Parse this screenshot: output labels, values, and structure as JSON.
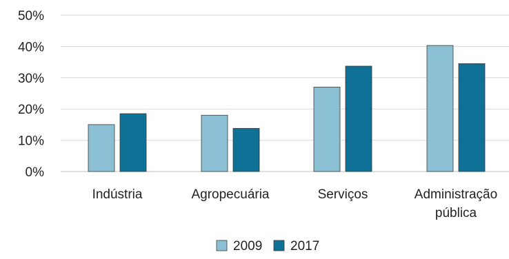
{
  "chart_data": {
    "type": "bar",
    "title": "",
    "xlabel": "",
    "ylabel": "",
    "categories": [
      [
        "Indústria"
      ],
      [
        "Agropecuária"
      ],
      [
        "Serviços"
      ],
      [
        "Administração",
        "pública"
      ]
    ],
    "series": [
      {
        "name": "2009",
        "color": "#8bbfd3",
        "values": [
          15,
          18,
          27,
          40.3
        ]
      },
      {
        "name": "2017",
        "color": "#0f7195",
        "values": [
          18.5,
          13.8,
          33.7,
          34.5
        ]
      }
    ],
    "ylim": [
      0,
      50
    ],
    "yticks": [
      0,
      10,
      20,
      30,
      40,
      50
    ],
    "ytick_labels": [
      "0%",
      "10%",
      "20%",
      "30%",
      "40%",
      "50%"
    ],
    "grid": true,
    "legend_position": "bottom-center"
  }
}
